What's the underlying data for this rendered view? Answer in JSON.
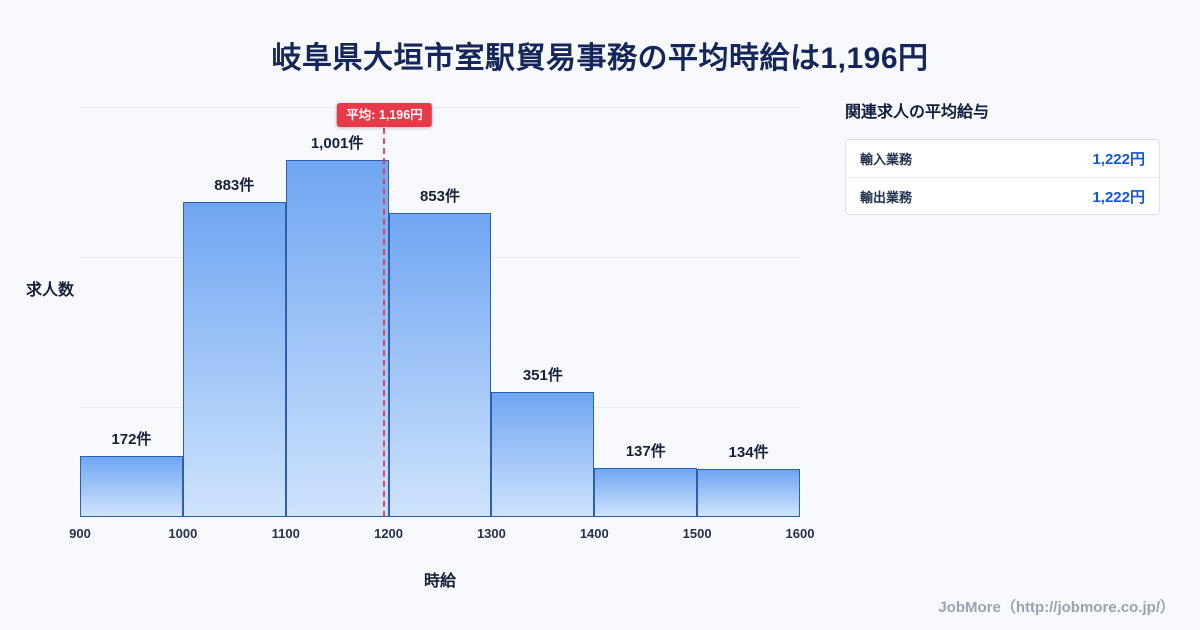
{
  "page": {
    "title": "岐阜県大垣市室駅貿易事務の平均時給は1,196円",
    "footer": "JobMore（http://jobmore.co.jp/）"
  },
  "chart_data": {
    "type": "bar",
    "title": "岐阜県大垣市室駅貿易事務の平均時給は1,196円",
    "xlabel": "時給",
    "ylabel": "求人数",
    "bin_edges": [
      900,
      1000,
      1100,
      1200,
      1300,
      1400,
      1500,
      1600
    ],
    "x_tick_labels": [
      "900",
      "1000",
      "1100",
      "1200",
      "1300",
      "1400",
      "1500",
      "1600"
    ],
    "values": [
      172,
      883,
      1001,
      853,
      351,
      137,
      134
    ],
    "bar_labels": [
      "172件",
      "883件",
      "1,001件",
      "853件",
      "351件",
      "137件",
      "134件"
    ],
    "average_value": 1196,
    "average_label": "平均: 1,196円",
    "ylim": [
      0,
      1150
    ],
    "grid": true,
    "legend": false,
    "colors": {
      "bar_fill_top": "#6fa6f2",
      "bar_fill_bottom": "#cfe3fc",
      "bar_border": "#2e5fae",
      "average_line": "#e73948",
      "title_text": "#14265a"
    }
  },
  "side_panel": {
    "heading": "関連求人の平均給与",
    "rows": [
      {
        "label": "輸入業務",
        "value": "1,222円"
      },
      {
        "label": "輸出業務",
        "value": "1,222円"
      }
    ],
    "value_color": "#1456d8"
  }
}
